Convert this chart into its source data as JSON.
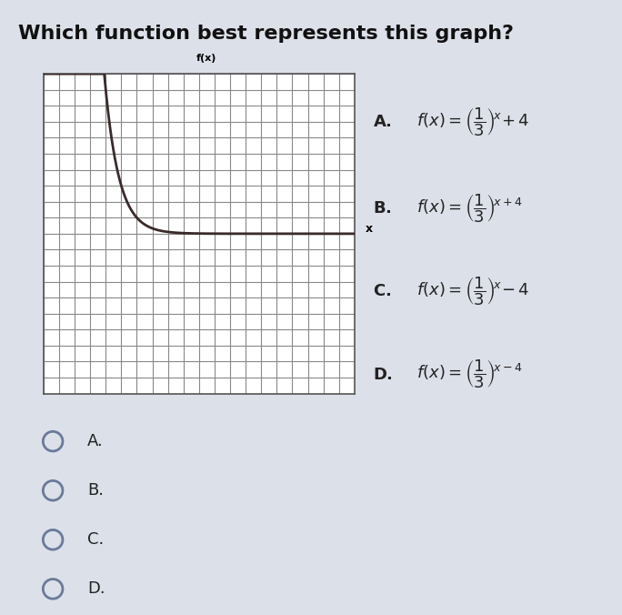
{
  "title": "Which function best represents this graph?",
  "title_fontsize": 16,
  "title_fontweight": "bold",
  "bg_color": "#dce0e8",
  "graph_bg": "#ffffff",
  "grid_color": "#888888",
  "curve_color": "#3a2a2a",
  "axis_color": "#000000",
  "graph_xlim": [
    -10,
    10
  ],
  "graph_ylim": [
    -10,
    10
  ],
  "x_axis_label": "x",
  "y_axis_label": "f(x)",
  "radio_options": [
    "A.",
    "B.",
    "C.",
    "D."
  ],
  "radio_color": "#6a7a9a",
  "option_label_color": "#222222",
  "options_panel_bg": "#e8eaef"
}
